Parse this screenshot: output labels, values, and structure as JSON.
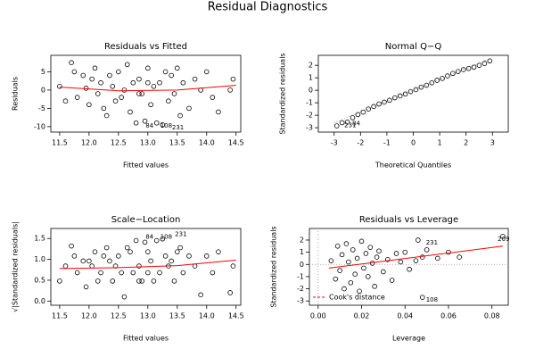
{
  "title": "Residual Diagnostics",
  "chart_data": [
    {
      "type": "scatter",
      "title": "Residuals vs Fitted",
      "xlabel": "Fitted values",
      "ylabel": "Residuals",
      "xlim": [
        11.35,
        14.58
      ],
      "ylim": [
        -11.5,
        9.5
      ],
      "xticks": [
        11.5,
        {
          "value": 12,
          "label": "12.0"
        },
        12.5,
        {
          "value": 13,
          "label": "13.0"
        },
        13.5,
        {
          "value": 14,
          "label": "14.0"
        },
        14.5
      ],
      "yticks": [
        -10,
        -5,
        0,
        5
      ],
      "x": [
        11.5,
        11.6,
        11.7,
        11.75,
        11.8,
        11.9,
        11.95,
        12.0,
        12.05,
        12.1,
        12.15,
        12.2,
        12.25,
        12.3,
        12.35,
        12.4,
        12.45,
        12.5,
        12.55,
        12.6,
        12.65,
        12.7,
        12.75,
        12.8,
        12.85,
        12.9,
        12.95,
        13.0,
        13.05,
        13.1,
        13.15,
        13.2,
        13.25,
        13.3,
        13.35,
        13.4,
        13.45,
        13.5,
        13.55,
        13.6,
        13.7,
        13.8,
        13.9,
        14.0,
        14.1,
        14.2,
        14.4,
        14.45,
        12.85,
        13.0
      ],
      "y": [
        1,
        -3,
        7.5,
        5,
        -2,
        4,
        0.5,
        -4,
        3,
        6,
        -1,
        2,
        -5,
        -7,
        4,
        1,
        -3,
        5,
        -2,
        0,
        7,
        -6,
        2,
        -9,
        3,
        -1,
        -8.5,
        6,
        -4,
        1,
        -9,
        2,
        -9.5,
        5,
        -3,
        4,
        -1,
        6,
        -7,
        2,
        -5,
        3,
        0,
        5,
        -2,
        -6,
        0,
        3,
        -1,
        2
      ],
      "smooth": {
        "x": [
          11.5,
          12.5,
          13.5,
          14.5
        ],
        "y": [
          0.8,
          -0.2,
          0.0,
          1.3
        ],
        "color": "#ff0000"
      },
      "annotations": [
        {
          "text": "84",
          "x": 12.9,
          "y": -9
        },
        {
          "text": "108",
          "x": 13.15,
          "y": -9
        },
        {
          "text": "231",
          "x": 13.35,
          "y": -9.5
        }
      ]
    },
    {
      "type": "scatter",
      "title": "Normal Q−Q",
      "xlabel": "Theoretical Quantiles",
      "ylabel": "Standardized residuals",
      "xlim": [
        -3.6,
        3.6
      ],
      "ylim": [
        -3.35,
        2.8
      ],
      "xticks": [
        -3,
        -2,
        -1,
        0,
        1,
        2,
        3
      ],
      "yticks": [
        -3,
        -2,
        -1,
        0,
        1,
        2
      ],
      "x": [
        -2.9,
        -2.7,
        -2.5,
        -2.3,
        -2.1,
        -1.9,
        -1.7,
        -1.5,
        -1.3,
        -1.1,
        -0.9,
        -0.7,
        -0.5,
        -0.3,
        -0.1,
        0.1,
        0.3,
        0.5,
        0.7,
        0.9,
        1.1,
        1.3,
        1.5,
        1.7,
        1.9,
        2.1,
        2.3,
        2.5,
        2.7,
        2.9
      ],
      "y": [
        -2.85,
        -2.6,
        -2.55,
        -2.2,
        -1.95,
        -1.75,
        -1.5,
        -1.3,
        -1.1,
        -0.95,
        -0.8,
        -0.6,
        -0.45,
        -0.3,
        -0.1,
        0.05,
        0.25,
        0.4,
        0.6,
        0.8,
        0.95,
        1.15,
        1.35,
        1.5,
        1.65,
        1.75,
        1.85,
        2.0,
        2.15,
        2.35
      ],
      "refline": {
        "x": [
          -3,
          3
        ],
        "y": [
          -2.6,
          2.6
        ],
        "color": "#999999"
      },
      "annotations": [
        {
          "text": "231",
          "x": -2.75,
          "y": -2.6
        },
        {
          "text": "84",
          "x": -2.45,
          "y": -2.45
        }
      ]
    },
    {
      "type": "scatter",
      "title": "Scale−Location",
      "xlabel": "Fitted values",
      "ylabel": "√|Standardized residuals|",
      "xlim": [
        11.35,
        14.58
      ],
      "ylim": [
        -0.1,
        1.74
      ],
      "xticks": [
        11.5,
        {
          "value": 12,
          "label": "12.0"
        },
        12.5,
        {
          "value": 13,
          "label": "13.0"
        },
        13.5,
        {
          "value": 14,
          "label": "14.0"
        },
        14.5
      ],
      "yticks": [
        {
          "value": 0,
          "label": "0.0"
        },
        0.5,
        {
          "value": 1,
          "label": "1.0"
        },
        1.5
      ],
      "x": [
        11.5,
        11.6,
        11.7,
        11.75,
        11.8,
        11.9,
        11.95,
        12.0,
        12.05,
        12.1,
        12.15,
        12.2,
        12.25,
        12.3,
        12.35,
        12.4,
        12.45,
        12.5,
        12.55,
        12.6,
        12.65,
        12.7,
        12.75,
        12.8,
        12.85,
        12.9,
        12.95,
        13.0,
        13.05,
        13.1,
        13.15,
        13.2,
        13.25,
        13.3,
        13.35,
        13.4,
        13.45,
        13.5,
        13.55,
        13.6,
        13.7,
        13.8,
        13.9,
        14.0,
        14.1,
        14.2,
        14.4,
        14.45,
        12.85,
        13.0
      ],
      "y": [
        0.48,
        0.84,
        1.32,
        1.08,
        0.68,
        0.96,
        0.34,
        0.96,
        0.84,
        1.18,
        0.48,
        0.68,
        1.08,
        1.28,
        0.96,
        0.48,
        0.84,
        1.08,
        0.68,
        0.1,
        1.28,
        1.18,
        0.68,
        1.45,
        0.84,
        0.48,
        1.41,
        1.18,
        0.96,
        0.48,
        1.45,
        0.68,
        1.49,
        1.08,
        0.84,
        0.96,
        0.48,
        1.18,
        1.28,
        0.68,
        1.08,
        0.84,
        0.15,
        1.08,
        0.68,
        1.18,
        0.2,
        0.84,
        0.48,
        0.68
      ],
      "smooth": {
        "x": [
          11.5,
          12.5,
          13.5,
          14.5
        ],
        "y": [
          0.78,
          0.8,
          0.85,
          0.98
        ],
        "color": "#ff0000"
      },
      "annotations": [
        {
          "text": "84",
          "x": 12.9,
          "y": 1.6
        },
        {
          "text": "108",
          "x": 13.15,
          "y": 1.6
        },
        {
          "text": "231",
          "x": 13.4,
          "y": 1.66
        }
      ]
    },
    {
      "type": "scatter",
      "title": "Residuals vs Leverage",
      "xlabel": "Leverage",
      "ylabel": "Standardized residuals",
      "xlim": [
        -0.004,
        0.0875
      ],
      "ylim": [
        -3.35,
        2.95
      ],
      "xticks": [
        {
          "value": 0,
          "label": "0.00"
        },
        0.02,
        0.04,
        0.06,
        0.08
      ],
      "yticks": [
        -3,
        -2,
        -1,
        0,
        1,
        2
      ],
      "x": [
        0.006,
        0.008,
        0.009,
        0.01,
        0.011,
        0.012,
        0.013,
        0.014,
        0.015,
        0.016,
        0.017,
        0.018,
        0.019,
        0.02,
        0.021,
        0.022,
        0.023,
        0.024,
        0.025,
        0.026,
        0.027,
        0.028,
        0.03,
        0.032,
        0.034,
        0.036,
        0.038,
        0.04,
        0.042,
        0.045,
        0.048,
        0.05,
        0.055,
        0.06,
        0.065,
        0.085,
        0.046,
        0.048
      ],
      "y": [
        0.3,
        -1.2,
        1.5,
        -0.5,
        0.8,
        -2,
        1.7,
        0.2,
        -1.5,
        1.2,
        -0.8,
        0.5,
        -2.2,
        1.9,
        -0.3,
        0.9,
        -1,
        1.4,
        0.1,
        -1.8,
        0.6,
        1.1,
        -0.6,
        0.4,
        -1.3,
        0.9,
        0.2,
        1.0,
        -0.4,
        0.3,
        0.6,
        1.2,
        0.5,
        1.0,
        0.6,
        2.3,
        2.0,
        -2.7
      ],
      "smooth": {
        "x": [
          0.005,
          0.085
        ],
        "y": [
          -0.3,
          1.5
        ],
        "color": "#ff0000"
      },
      "zero_lines": true,
      "legend": {
        "text": "Cook's distance",
        "color": "#ff0000"
      },
      "annotations": [
        {
          "text": "231",
          "x": 0.048,
          "y": 2.0
        },
        {
          "text": "209",
          "x": 0.081,
          "y": 2.3
        },
        {
          "text": "108",
          "x": 0.048,
          "y": -2.7
        }
      ]
    }
  ]
}
